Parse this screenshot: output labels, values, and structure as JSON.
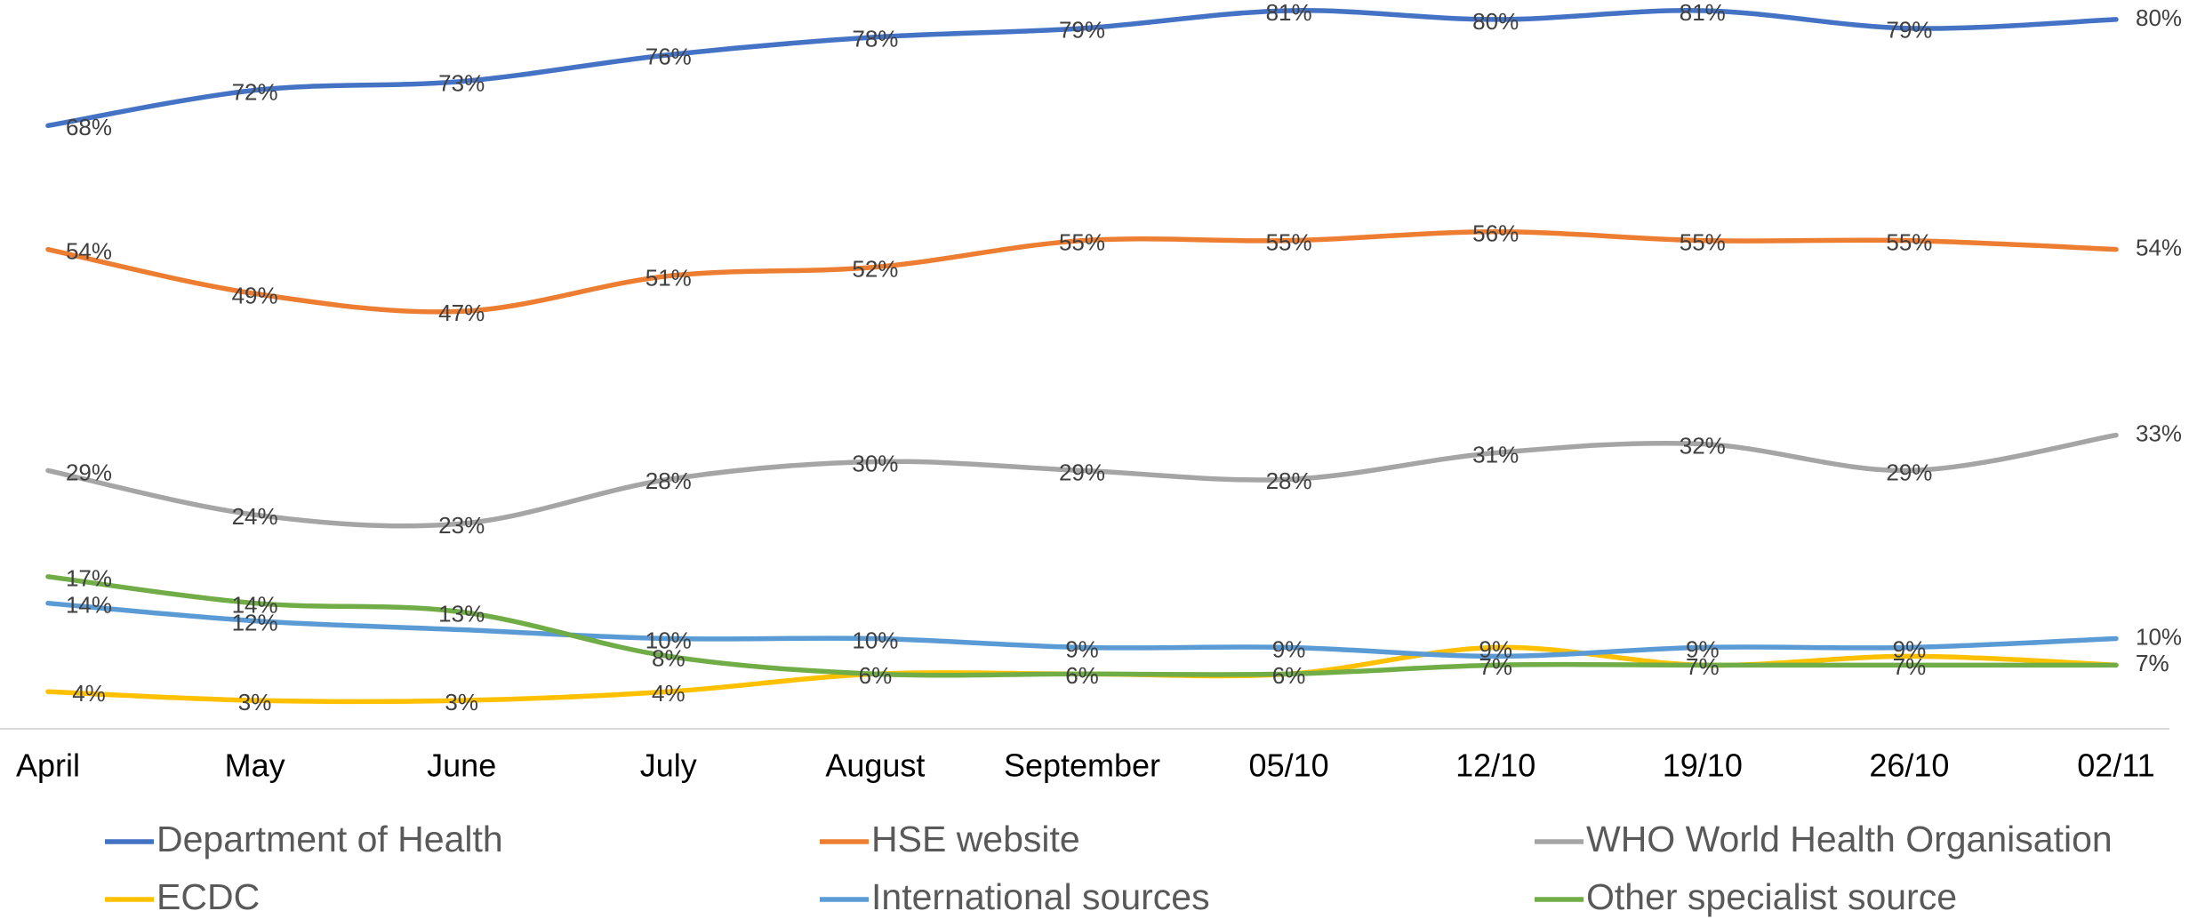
{
  "chart_data": {
    "type": "line",
    "categories": [
      "April",
      "May",
      "June",
      "July",
      "August",
      "September",
      "05/10",
      "12/10",
      "19/10",
      "26/10",
      "02/11"
    ],
    "ylim": [
      0,
      82
    ],
    "series": [
      {
        "name": "Department of Health",
        "color": "#4472c4",
        "values": [
          68,
          72,
          73,
          76,
          78,
          79,
          81,
          80,
          81,
          79,
          80
        ],
        "value_labels": [
          "68%",
          "72%",
          "73%",
          "76%",
          "78%",
          "79%",
          "81%",
          "80%",
          "81%",
          "79%",
          "80%"
        ]
      },
      {
        "name": "HSE website",
        "color": "#ed7d31",
        "values": [
          54,
          49,
          47,
          51,
          52,
          55,
          55,
          56,
          55,
          55,
          54
        ],
        "value_labels": [
          "54%",
          "49%",
          "47%",
          "51%",
          "52%",
          "55%",
          "55%",
          "56%",
          "55%",
          "55%",
          "54%"
        ]
      },
      {
        "name": "WHO World Health Organisation",
        "color": "#a5a5a5",
        "values": [
          29,
          24,
          23,
          28,
          30,
          29,
          28,
          31,
          32,
          29,
          33
        ],
        "value_labels": [
          "29%",
          "24%",
          "23%",
          "28%",
          "30%",
          "29%",
          "28%",
          "31%",
          "32%",
          "29%",
          "33%"
        ]
      },
      {
        "name": "ECDC",
        "color": "#ffc000",
        "values": [
          4,
          3,
          3,
          4,
          6,
          6,
          6,
          9,
          7,
          8,
          7
        ],
        "value_labels": [
          "4%",
          "3%",
          "3%",
          "4%",
          "6%",
          "6%",
          "6%",
          "9%",
          "7%",
          null,
          "7%"
        ]
      },
      {
        "name": "International sources",
        "color": "#5b9bd5",
        "values": [
          14,
          12,
          11,
          10,
          10,
          9,
          9,
          8,
          9,
          9,
          10
        ],
        "value_labels": [
          "14%",
          "12%",
          null,
          "10%",
          "10%",
          "9%",
          "9%",
          null,
          "9%",
          "9%",
          "10%"
        ]
      },
      {
        "name": "Other specialist source",
        "color": "#70ad47",
        "values": [
          17,
          14,
          13,
          8,
          6,
          6,
          6,
          7,
          7,
          7,
          7
        ],
        "value_labels": [
          "17%",
          "14%",
          "13%",
          "8%",
          null,
          null,
          null,
          "7%",
          null,
          "7%",
          "7%"
        ]
      }
    ]
  }
}
